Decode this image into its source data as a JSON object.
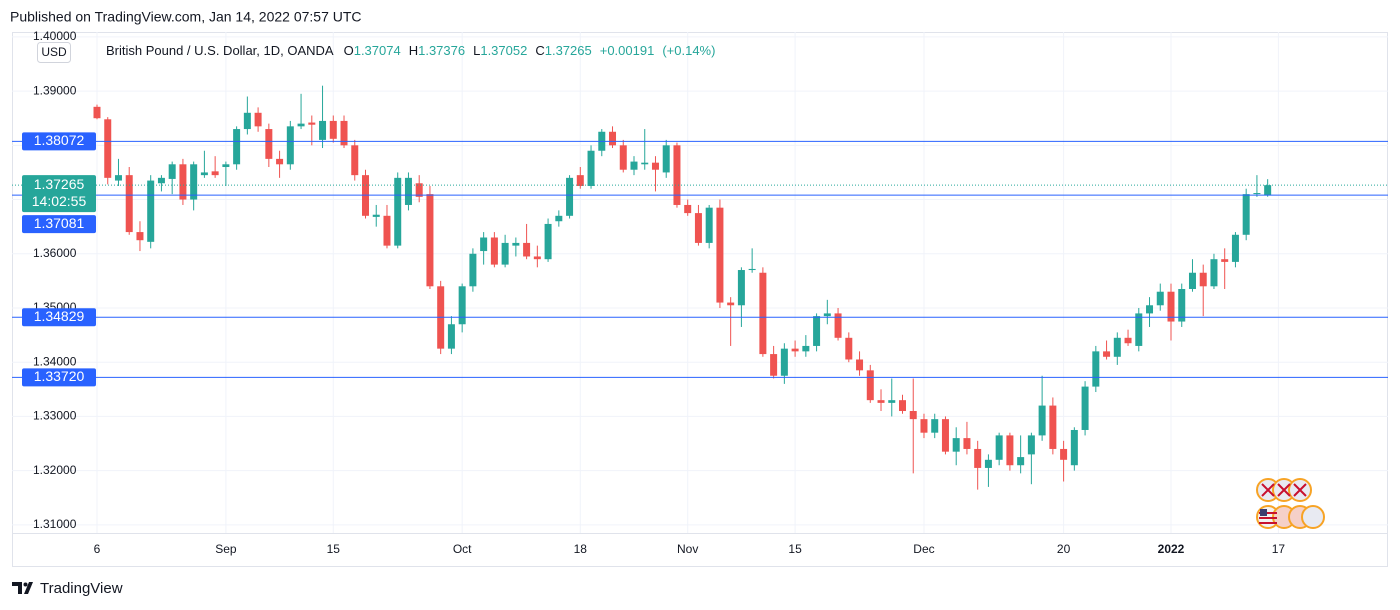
{
  "header": "Published on TradingView.com, Jan 14, 2022 07:57 UTC",
  "footer": "TradingView",
  "chart_data": {
    "type": "candlestick",
    "title": "British Pound / U.S. Dollar, 1D, OANDA",
    "currency": "USD",
    "ohlc_labels": [
      "O",
      "H",
      "L",
      "C"
    ],
    "change": {
      "value": 0.00191,
      "label": "+0.00191"
    },
    "change_pct": {
      "value": 0.14,
      "label": "(+0.14%)"
    },
    "countdown": "14:02:55",
    "up_color": "#26a69a",
    "down_color": "#ef5350",
    "line_color": "#2962ff",
    "grid": true,
    "ylim": [
      1.3085,
      1.4009
    ],
    "yticks": [
      {
        "value": 1.31,
        "label": "1.31000"
      },
      {
        "value": 1.32,
        "label": "1.32000"
      },
      {
        "value": 1.33,
        "label": "1.33000"
      },
      {
        "value": 1.34,
        "label": "1.34000"
      },
      {
        "value": 1.35,
        "label": "1.35000"
      },
      {
        "value": 1.36,
        "label": "1.36000"
      },
      {
        "value": 1.37,
        "label": "1.37000"
      },
      {
        "value": 1.38,
        "label": "1.38000"
      },
      {
        "value": 1.39,
        "label": "1.39000"
      },
      {
        "value": 1.4,
        "label": "1.40000"
      }
    ],
    "hlines": [
      1.38072,
      1.37081,
      1.34829,
      {
        "value": 1.3372,
        "label": "1.33720"
      }
    ],
    "categories": [
      "6",
      null,
      null,
      null,
      null,
      null,
      null,
      null,
      null,
      null,
      null,
      null,
      "Sep",
      null,
      null,
      null,
      null,
      null,
      null,
      null,
      null,
      null,
      "15",
      null,
      null,
      null,
      null,
      null,
      null,
      null,
      null,
      null,
      null,
      null,
      "Oct",
      null,
      null,
      null,
      null,
      null,
      null,
      null,
      null,
      null,
      null,
      "18",
      null,
      null,
      null,
      null,
      null,
      null,
      null,
      null,
      null,
      "Nov",
      null,
      null,
      null,
      null,
      null,
      null,
      null,
      null,
      null,
      "15",
      null,
      null,
      null,
      null,
      null,
      null,
      null,
      null,
      null,
      null,
      null,
      "Dec",
      null,
      null,
      null,
      null,
      null,
      null,
      null,
      null,
      null,
      null,
      null,
      null,
      "20",
      null,
      null,
      null,
      null,
      null,
      null,
      null,
      null,
      null,
      "2022",
      null,
      null,
      null,
      null,
      null,
      null,
      null,
      null,
      null,
      "17"
    ],
    "open": [
      1.3871,
      1.3848,
      1.3735,
      1.3745,
      1.364,
      1.3622,
      1.373,
      1.3738,
      1.3765,
      1.37,
      1.3745,
      1.3752,
      1.376,
      1.3765,
      1.383,
      1.386,
      1.383,
      1.3775,
      1.3765,
      1.3835,
      1.3842,
      1.381,
      1.3845,
      1.3845,
      1.38,
      1.3745,
      1.3668,
      1.367,
      1.3615,
      1.369,
      1.373,
      1.371,
      1.354,
      1.3425,
      1.347,
      1.354,
      1.3605,
      1.363,
      1.358,
      1.3615,
      1.362,
      1.3595,
      1.359,
      1.366,
      1.367,
      1.3745,
      1.3725,
      1.379,
      1.3825,
      1.38,
      1.3755,
      1.3765,
      1.3768,
      1.375,
      1.38,
      1.369,
      1.3675,
      1.362,
      1.3685,
      1.351,
      1.3505,
      1.357,
      1.3565,
      1.3415,
      1.3375,
      1.3425,
      1.342,
      1.343,
      1.3485,
      1.349,
      1.3445,
      1.3405,
      1.3385,
      1.333,
      1.3325,
      1.333,
      1.331,
      1.3295,
      1.327,
      1.3295,
      1.3235,
      1.326,
      1.324,
      1.3205,
      1.322,
      1.3265,
      1.321,
      1.323,
      1.3265,
      1.332,
      1.324,
      1.321,
      1.3275,
      1.3355,
      1.342,
      1.341,
      1.3445,
      1.343,
      1.349,
      1.3505,
      1.353,
      1.3475,
      1.3535,
      1.3565,
      1.354,
      1.359,
      1.3585,
      1.3635,
      1.371,
      1.37074,
      null
    ],
    "high": [
      1.3875,
      1.3852,
      1.3775,
      1.376,
      1.366,
      1.3745,
      1.3745,
      1.377,
      1.3775,
      1.377,
      1.379,
      1.378,
      1.377,
      1.3835,
      1.389,
      1.387,
      1.384,
      1.379,
      1.3845,
      1.3895,
      1.3855,
      1.391,
      1.3855,
      1.3855,
      1.381,
      1.3755,
      1.369,
      1.369,
      1.375,
      1.375,
      1.3745,
      1.3725,
      1.355,
      1.3485,
      1.3545,
      1.361,
      1.364,
      1.364,
      1.3635,
      1.363,
      1.3655,
      1.3615,
      1.3665,
      1.368,
      1.3745,
      1.376,
      1.38,
      1.383,
      1.3835,
      1.381,
      1.378,
      1.383,
      1.378,
      1.381,
      1.3805,
      1.37,
      1.369,
      1.369,
      1.37,
      1.352,
      1.3575,
      1.361,
      1.3575,
      1.343,
      1.3435,
      1.344,
      1.345,
      1.349,
      1.3515,
      1.35,
      1.3455,
      1.342,
      1.3395,
      1.335,
      1.337,
      1.334,
      1.337,
      1.3305,
      1.3305,
      1.33,
      1.328,
      1.329,
      1.3255,
      1.323,
      1.327,
      1.327,
      1.3265,
      1.327,
      1.3375,
      1.3335,
      1.3255,
      1.328,
      1.3365,
      1.343,
      1.344,
      1.3455,
      1.346,
      1.35,
      1.352,
      1.3545,
      1.3545,
      1.3545,
      1.359,
      1.358,
      1.36,
      1.361,
      1.364,
      1.372,
      1.3745,
      1.37376,
      null
    ],
    "low": [
      1.3848,
      1.3728,
      1.3725,
      1.3635,
      1.3605,
      1.361,
      1.3715,
      1.371,
      1.369,
      1.368,
      1.374,
      1.374,
      1.3725,
      1.3755,
      1.382,
      1.3825,
      1.376,
      1.374,
      1.3755,
      1.383,
      1.38,
      1.3795,
      1.3805,
      1.3795,
      1.3735,
      1.3665,
      1.365,
      1.361,
      1.361,
      1.368,
      1.3695,
      1.3535,
      1.3415,
      1.3415,
      1.3455,
      1.353,
      1.358,
      1.3575,
      1.3575,
      1.3595,
      1.359,
      1.3575,
      1.3585,
      1.365,
      1.3665,
      1.372,
      1.372,
      1.378,
      1.3795,
      1.375,
      1.3745,
      1.3755,
      1.3715,
      1.374,
      1.3685,
      1.367,
      1.3615,
      1.361,
      1.35,
      1.343,
      1.3465,
      1.3565,
      1.341,
      1.337,
      1.336,
      1.341,
      1.341,
      1.342,
      1.347,
      1.344,
      1.34,
      1.3375,
      1.3325,
      1.331,
      1.33,
      1.3305,
      1.3195,
      1.326,
      1.326,
      1.323,
      1.321,
      1.323,
      1.3165,
      1.317,
      1.321,
      1.32,
      1.3195,
      1.3175,
      1.3255,
      1.323,
      1.318,
      1.32,
      1.3265,
      1.3345,
      1.3405,
      1.3395,
      1.343,
      1.342,
      1.3465,
      1.3495,
      1.344,
      1.3465,
      1.353,
      1.3485,
      1.3535,
      1.3535,
      1.3575,
      1.3625,
      1.3705,
      1.37052,
      null
    ],
    "close": [
      1.385,
      1.374,
      1.3745,
      1.364,
      1.3625,
      1.3735,
      1.374,
      1.3765,
      1.37,
      1.3765,
      1.375,
      1.3745,
      1.3765,
      1.383,
      1.386,
      1.3835,
      1.3775,
      1.3765,
      1.3835,
      1.384,
      1.3838,
      1.3845,
      1.3812,
      1.38,
      1.3745,
      1.367,
      1.3672,
      1.3615,
      1.374,
      1.374,
      1.3705,
      1.354,
      1.3425,
      1.347,
      1.354,
      1.36,
      1.363,
      1.358,
      1.362,
      1.362,
      1.3595,
      1.359,
      1.3655,
      1.367,
      1.374,
      1.3725,
      1.379,
      1.3825,
      1.38,
      1.3755,
      1.377,
      1.3768,
      1.3755,
      1.38,
      1.369,
      1.3675,
      1.362,
      1.3685,
      1.351,
      1.3505,
      1.357,
      1.3572,
      1.3415,
      1.3375,
      1.3425,
      1.342,
      1.343,
      1.3485,
      1.349,
      1.3445,
      1.3405,
      1.3385,
      1.333,
      1.3325,
      1.333,
      1.331,
      1.3295,
      1.327,
      1.3295,
      1.3235,
      1.326,
      1.324,
      1.3205,
      1.322,
      1.3265,
      1.321,
      1.3225,
      1.3265,
      1.332,
      1.324,
      1.322,
      1.3275,
      1.3355,
      1.342,
      1.341,
      1.3445,
      1.3435,
      1.349,
      1.3505,
      1.353,
      1.3475,
      1.3535,
      1.3565,
      1.354,
      1.359,
      1.3585,
      1.3635,
      1.371,
      1.3712,
      1.37265,
      null
    ]
  }
}
